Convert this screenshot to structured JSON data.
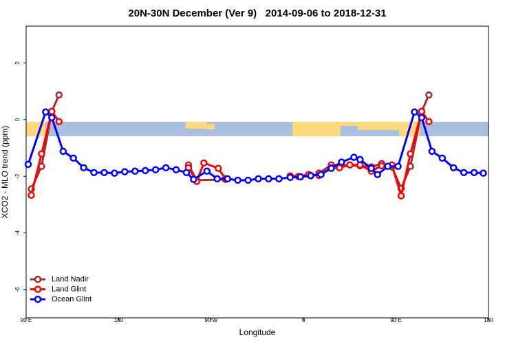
{
  "chart_data": {
    "type": "line",
    "title": "20N-30N December (Ver 9)   2014-09-06 to 2018-12-31",
    "x_label": "Longitude",
    "y_label": "XCO2 - MLO trend (ppm)",
    "xlim": [
      90,
      540
    ],
    "xticks": [
      {
        "value": 90,
        "label": "90 E"
      },
      {
        "value": 180,
        "label": "180"
      },
      {
        "value": 270,
        "label": "90 W"
      },
      {
        "value": 360,
        "label": "0"
      },
      {
        "value": 450,
        "label": "90 E"
      },
      {
        "value": 540,
        "label": "180"
      }
    ],
    "ylim": [
      -7,
      3.3
    ],
    "yticks": [
      -6,
      -4,
      -2,
      0,
      2
    ],
    "legend": "bottom-left",
    "series": [
      {
        "name": "Land Nadir",
        "color": "#a52a2a",
        "x": [
          95,
          105,
          115,
          122,
          185,
          248,
          256,
          284,
          370,
          375,
          387,
          415,
          426,
          436,
          446,
          455,
          464,
          475,
          482
        ],
        "values": [
          -2.45,
          -1.65,
          0.29,
          0.87,
          null,
          -1.6,
          -2.14,
          -2.11,
          null,
          -1.89,
          -1.6,
          -1.63,
          -1.67,
          -1.55,
          -1.67,
          -2.43,
          -1.65,
          0.29,
          0.87
        ]
      },
      {
        "name": "Land Glint",
        "color": "#ff0000",
        "x": [
          95,
          105,
          115,
          122,
          185,
          248,
          256,
          263,
          277,
          284,
          315,
          347,
          355,
          365,
          375,
          387,
          395,
          405,
          415,
          426,
          436,
          446,
          455,
          464,
          475,
          482
        ],
        "values": [
          -2.67,
          -1.21,
          0.29,
          -0.07,
          null,
          -1.7,
          -2.18,
          -1.53,
          -1.72,
          -2.09,
          null,
          -1.99,
          -2.01,
          -1.94,
          -1.97,
          -1.7,
          -1.7,
          -1.6,
          -1.6,
          -1.82,
          -1.63,
          -1.6,
          -2.69,
          -1.21,
          0.29,
          -0.07
        ]
      },
      {
        "name": "Ocean Glint",
        "color": "#0000ff",
        "x": [
          92,
          109,
          115,
          126,
          136,
          146,
          156,
          166,
          176,
          186,
          196,
          206,
          216,
          226,
          236,
          246,
          253,
          266,
          276,
          286,
          296,
          306,
          316,
          326,
          336,
          347,
          357,
          367,
          377,
          387,
          397,
          409,
          415,
          426,
          432,
          442,
          452,
          468,
          475,
          485,
          495,
          506,
          516,
          526,
          535
        ],
        "values": [
          -1.58,
          0.27,
          0.07,
          -1.12,
          -1.36,
          -1.7,
          -1.87,
          -1.87,
          -1.89,
          -1.84,
          -1.82,
          -1.8,
          -1.77,
          -1.7,
          -1.77,
          -1.87,
          -2.11,
          -1.82,
          -2.09,
          -2.09,
          -2.14,
          -2.14,
          -2.09,
          -2.09,
          -2.09,
          -2.04,
          -2.02,
          -1.98,
          -1.94,
          -1.72,
          -1.5,
          -1.33,
          -1.41,
          -1.72,
          -1.94,
          -1.65,
          -1.65,
          0.27,
          0.07,
          -1.12,
          -1.36,
          -1.7,
          -1.87,
          -1.87,
          -1.89
        ]
      }
    ]
  }
}
